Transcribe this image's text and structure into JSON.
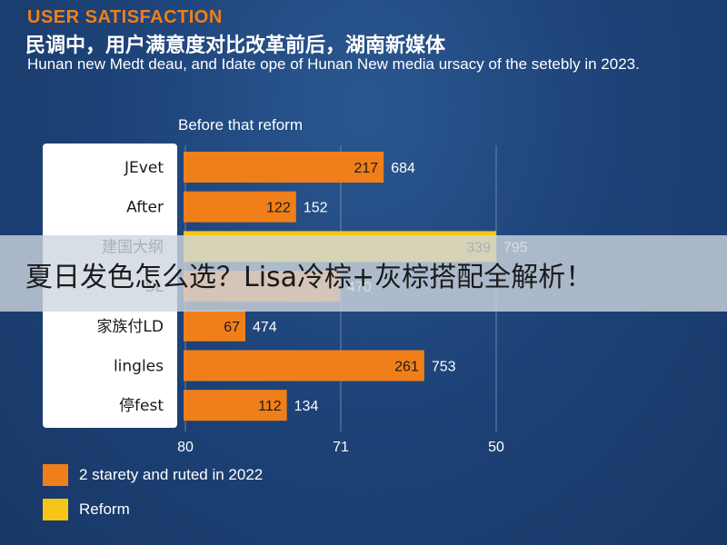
{
  "header": {
    "eyebrow": "USER SATISFACTION",
    "headline": "民调中，用户满意度对比改革前后，湖南新媒体",
    "subtitle": "Hunan new Medt deau, and Idate ope of Hunan New media ursacy of the setebly in 2023."
  },
  "chart_data": {
    "type": "bar",
    "orientation": "horizontal",
    "title": "Before that reform",
    "categories": [
      "JEvet",
      "After",
      "建国大纲",
      "SL",
      "家族付LD",
      "lingles",
      "停fest"
    ],
    "series": [
      {
        "values": [
          217,
          122,
          339,
          null,
          67,
          261,
          112
        ]
      },
      {
        "values": [
          684,
          152,
          795,
          470,
          474,
          753,
          134
        ]
      }
    ],
    "x_tick_labels": [
      "80",
      "71",
      "50"
    ],
    "grid": "vertical",
    "legend_position": "bottom-left",
    "legend": [
      {
        "label": "2 starety and ruted in 2022",
        "color": "#f07f1a"
      },
      {
        "label": "Reform",
        "color": "#f5c518"
      }
    ],
    "colors": {
      "bar": "#f07f1a",
      "bar_highlight": "#f5c518"
    }
  },
  "overlay": {
    "banner_text": "夏日发色怎么选？Lisa冷棕+灰棕搭配全解析！"
  }
}
